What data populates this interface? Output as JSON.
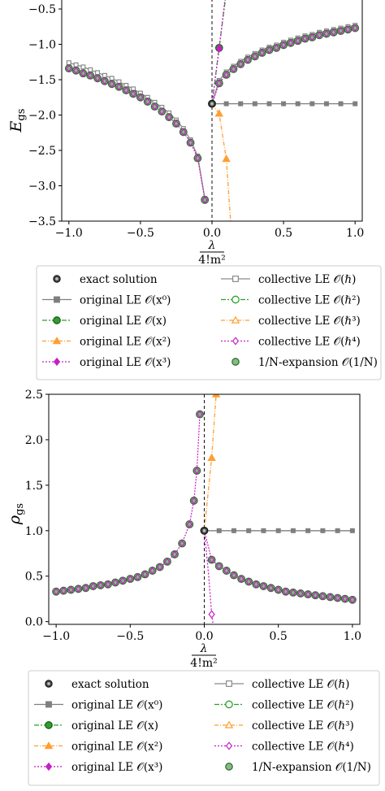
{
  "colors": {
    "exact": "#222222",
    "x0": "#7f7f7f",
    "x1": "#2ca02c",
    "x2": "#ff9f2f",
    "x3": "#c51fc5",
    "hbar": "#8a8a8a",
    "hbar2": "#2ca02c",
    "hbar3": "#ff9f2f",
    "hbar4": "#c51fc5",
    "oneN_fill": "#7fbf7f",
    "oneN_edge": "#3a6b3a"
  },
  "legend_labels": {
    "exact": "exact solution",
    "orig0": "original LE 𝒪(x⁰)",
    "orig1": "original LE 𝒪(x)",
    "orig2": "original LE 𝒪(x²)",
    "orig3": "original LE 𝒪(x³)",
    "coll1": "collective LE 𝒪(ℏ)",
    "coll2": "collective LE 𝒪(ℏ²)",
    "coll3": "collective LE 𝒪(ℏ³)",
    "coll4": "collective LE 𝒪(ℏ⁴)",
    "oneN": "1/N-expansion 𝒪(1/N)"
  },
  "chart_data": [
    {
      "type": "line",
      "ylabel": "E_gs",
      "xlabel": "λ / 4!m²",
      "xlabel_num": "λ",
      "xlabel_den": "4!m²",
      "ylabel_main": "E",
      "ylabel_sub": "gs",
      "xlim": [
        -1.05,
        1.05
      ],
      "ylim": [
        -3.5,
        -0.35
      ],
      "xticks": [
        "−1.0",
        "−0.5",
        "0.0",
        "0.5",
        "1.0"
      ],
      "xtick_values": [
        -1.0,
        -0.5,
        0.0,
        0.5,
        1.0
      ],
      "yticks": [
        "−3.5",
        "−3.0",
        "−2.5",
        "−2.0",
        "−1.5",
        "−1.0",
        "−0.5"
      ],
      "ytick_values": [
        -3.5,
        -3.0,
        -2.5,
        -2.0,
        -1.5,
        -1.0,
        -0.5
      ],
      "vline_x": 0.0,
      "series": {
        "exact_neg": [
          [
            -1.0,
            -1.34
          ],
          [
            -0.95,
            -1.37
          ],
          [
            -0.9,
            -1.41
          ],
          [
            -0.85,
            -1.44
          ],
          [
            -0.8,
            -1.48
          ],
          [
            -0.75,
            -1.52
          ],
          [
            -0.7,
            -1.56
          ],
          [
            -0.65,
            -1.6
          ],
          [
            -0.6,
            -1.65
          ],
          [
            -0.55,
            -1.7
          ],
          [
            -0.5,
            -1.75
          ],
          [
            -0.45,
            -1.81
          ],
          [
            -0.4,
            -1.88
          ],
          [
            -0.35,
            -1.95
          ],
          [
            -0.3,
            -2.03
          ],
          [
            -0.25,
            -2.12
          ],
          [
            -0.2,
            -2.24
          ],
          [
            -0.15,
            -2.39
          ],
          [
            -0.1,
            -2.61
          ],
          [
            -0.05,
            -3.2
          ]
        ],
        "exact_pos": [
          [
            0.0,
            -1.84
          ],
          [
            0.05,
            -1.55
          ],
          [
            0.1,
            -1.43
          ],
          [
            0.15,
            -1.35
          ],
          [
            0.2,
            -1.28
          ],
          [
            0.25,
            -1.22
          ],
          [
            0.3,
            -1.17
          ],
          [
            0.35,
            -1.12
          ],
          [
            0.4,
            -1.08
          ],
          [
            0.45,
            -1.05
          ],
          [
            0.5,
            -1.01
          ],
          [
            0.55,
            -0.98
          ],
          [
            0.6,
            -0.95
          ],
          [
            0.65,
            -0.92
          ],
          [
            0.7,
            -0.9
          ],
          [
            0.75,
            -0.87
          ],
          [
            0.8,
            -0.85
          ],
          [
            0.85,
            -0.83
          ],
          [
            0.9,
            -0.81
          ],
          [
            0.95,
            -0.79
          ],
          [
            1.0,
            -0.77
          ]
        ],
        "orig0": [
          [
            0.0,
            -1.84
          ],
          [
            0.1,
            -1.84
          ],
          [
            0.2,
            -1.84
          ],
          [
            0.3,
            -1.84
          ],
          [
            0.4,
            -1.84
          ],
          [
            0.5,
            -1.84
          ],
          [
            0.6,
            -1.84
          ],
          [
            0.7,
            -1.84
          ],
          [
            0.8,
            -1.84
          ],
          [
            0.9,
            -1.84
          ],
          [
            1.0,
            -1.84
          ]
        ],
        "orig1": [
          [
            0.0,
            -1.84
          ],
          [
            0.05,
            -1.05
          ],
          [
            0.1,
            -0.27
          ]
        ],
        "orig2": [
          [
            0.0,
            -1.84
          ],
          [
            0.05,
            -1.98
          ],
          [
            0.1,
            -2.62
          ],
          [
            0.13,
            -3.5
          ]
        ],
        "orig3": [
          [
            0.0,
            -1.84
          ],
          [
            0.05,
            -1.06
          ],
          [
            0.1,
            -0.2
          ]
        ],
        "coll1_neg": [
          [
            -1.0,
            -1.26
          ],
          [
            -0.95,
            -1.29
          ],
          [
            -0.9,
            -1.32
          ],
          [
            -0.85,
            -1.36
          ],
          [
            -0.8,
            -1.4
          ],
          [
            -0.75,
            -1.44
          ],
          [
            -0.7,
            -1.48
          ],
          [
            -0.65,
            -1.53
          ],
          [
            -0.6,
            -1.58
          ],
          [
            -0.55,
            -1.63
          ],
          [
            -0.5,
            -1.69
          ],
          [
            -0.45,
            -1.75
          ],
          [
            -0.4,
            -1.82
          ],
          [
            -0.35,
            -1.89
          ],
          [
            -0.3,
            -1.97
          ],
          [
            -0.25,
            -2.07
          ],
          [
            -0.2,
            -2.19
          ],
          [
            -0.15,
            -2.35
          ],
          [
            -0.1,
            -2.58
          ],
          [
            -0.05,
            -3.18
          ]
        ],
        "coll1_pos": [
          [
            0.0,
            -1.84
          ],
          [
            0.05,
            -1.51
          ],
          [
            0.1,
            -1.39
          ],
          [
            0.15,
            -1.31
          ],
          [
            0.2,
            -1.24
          ],
          [
            0.25,
            -1.18
          ],
          [
            0.3,
            -1.13
          ],
          [
            0.35,
            -1.08
          ],
          [
            0.4,
            -1.04
          ],
          [
            0.45,
            -1.01
          ],
          [
            0.5,
            -0.97
          ],
          [
            0.55,
            -0.94
          ],
          [
            0.6,
            -0.91
          ],
          [
            0.65,
            -0.88
          ],
          [
            0.7,
            -0.86
          ],
          [
            0.75,
            -0.83
          ],
          [
            0.8,
            -0.81
          ],
          [
            0.85,
            -0.79
          ],
          [
            0.9,
            -0.77
          ],
          [
            0.95,
            -0.75
          ],
          [
            1.0,
            -0.73
          ]
        ]
      }
    },
    {
      "type": "line",
      "ylabel": "ρ_gs",
      "xlabel": "λ / 4!m²",
      "xlabel_num": "λ",
      "xlabel_den": "4!m²",
      "ylabel_main": "ρ",
      "ylabel_sub": "gs",
      "xlim": [
        -1.05,
        1.05
      ],
      "ylim": [
        -0.03,
        2.5
      ],
      "xticks": [
        "−1.0",
        "−0.5",
        "0.0",
        "0.5",
        "1.0"
      ],
      "xtick_values": [
        -1.0,
        -0.5,
        0.0,
        0.5,
        1.0
      ],
      "yticks": [
        "0.0",
        "0.5",
        "1.0",
        "1.5",
        "2.0",
        "2.5"
      ],
      "ytick_values": [
        0.0,
        0.5,
        1.0,
        1.5,
        2.0,
        2.5
      ],
      "vline_x": 0.0,
      "series": {
        "exact_neg": [
          [
            -1.0,
            0.33
          ],
          [
            -0.95,
            0.34
          ],
          [
            -0.9,
            0.35
          ],
          [
            -0.85,
            0.36
          ],
          [
            -0.8,
            0.37
          ],
          [
            -0.75,
            0.39
          ],
          [
            -0.7,
            0.4
          ],
          [
            -0.65,
            0.41
          ],
          [
            -0.6,
            0.43
          ],
          [
            -0.55,
            0.45
          ],
          [
            -0.5,
            0.47
          ],
          [
            -0.45,
            0.49
          ],
          [
            -0.4,
            0.52
          ],
          [
            -0.35,
            0.56
          ],
          [
            -0.3,
            0.6
          ],
          [
            -0.25,
            0.66
          ],
          [
            -0.2,
            0.74
          ],
          [
            -0.15,
            0.86
          ],
          [
            -0.1,
            1.07
          ],
          [
            -0.07,
            1.33
          ],
          [
            -0.05,
            1.66
          ],
          [
            -0.03,
            2.28
          ]
        ],
        "exact_pos": [
          [
            0.0,
            1.0
          ],
          [
            0.05,
            0.68
          ],
          [
            0.1,
            0.61
          ],
          [
            0.15,
            0.56
          ],
          [
            0.2,
            0.51
          ],
          [
            0.25,
            0.47
          ],
          [
            0.3,
            0.44
          ],
          [
            0.35,
            0.41
          ],
          [
            0.4,
            0.39
          ],
          [
            0.45,
            0.37
          ],
          [
            0.5,
            0.35
          ],
          [
            0.55,
            0.33
          ],
          [
            0.6,
            0.32
          ],
          [
            0.65,
            0.31
          ],
          [
            0.7,
            0.3
          ],
          [
            0.75,
            0.29
          ],
          [
            0.8,
            0.28
          ],
          [
            0.85,
            0.27
          ],
          [
            0.9,
            0.26
          ],
          [
            0.95,
            0.25
          ],
          [
            1.0,
            0.24
          ]
        ],
        "orig0": [
          [
            0.0,
            1.0
          ],
          [
            0.1,
            1.0
          ],
          [
            0.2,
            1.0
          ],
          [
            0.3,
            1.0
          ],
          [
            0.4,
            1.0
          ],
          [
            0.5,
            1.0
          ],
          [
            0.6,
            1.0
          ],
          [
            0.7,
            1.0
          ],
          [
            0.8,
            1.0
          ],
          [
            0.9,
            1.0
          ],
          [
            1.0,
            1.0
          ]
        ],
        "orig2": [
          [
            0.0,
            1.0
          ],
          [
            0.05,
            1.8
          ],
          [
            0.08,
            2.5
          ]
        ],
        "coll4": [
          [
            0.0,
            1.0
          ],
          [
            0.03,
            0.5
          ],
          [
            0.05,
            0.08
          ],
          [
            0.06,
            -0.03
          ]
        ]
      }
    }
  ]
}
